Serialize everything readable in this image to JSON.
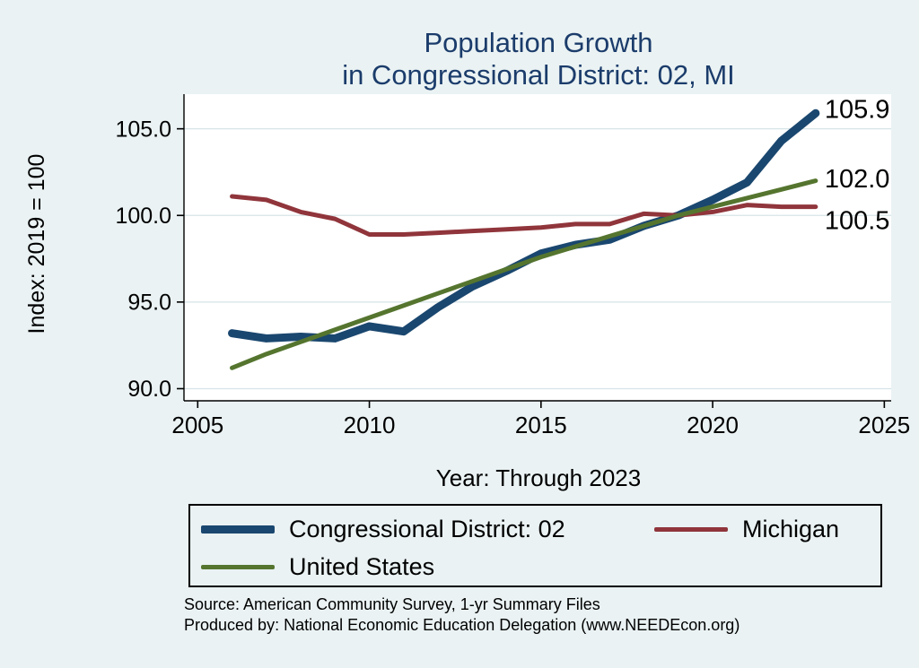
{
  "page": {
    "background": "#eaf2f3"
  },
  "chart_data": {
    "type": "line",
    "title_line1": "Population Growth",
    "title_line2": "in Congressional District: 02, MI",
    "title_color": "#1b3c6b",
    "xlabel": "Year: Through 2023",
    "ylabel": "Index: 2019 = 100",
    "plot_bg": "#ffffff",
    "grid_color": "#d6e4e7",
    "grid": true,
    "legend_position": "bottom",
    "xlim": [
      2004.6,
      2025.2
    ],
    "ylim": [
      89.3,
      107.0
    ],
    "xticks": [
      2005,
      2010,
      2015,
      2020,
      2025
    ],
    "yticks": [
      90,
      95,
      100,
      105
    ],
    "ytick_labels": [
      "90.0",
      "95.0",
      "100.0",
      "105.0"
    ],
    "x": [
      2006,
      2007,
      2008,
      2009,
      2010,
      2011,
      2012,
      2013,
      2014,
      2015,
      2016,
      2017,
      2018,
      2019,
      2020,
      2021,
      2022,
      2023
    ],
    "series": [
      {
        "name": "Congressional District: 02",
        "color": "#1a476f",
        "width": 9,
        "label_dy": -5,
        "end_label": "105.9",
        "values": [
          93.2,
          92.9,
          93.0,
          92.9,
          93.6,
          93.3,
          94.7,
          95.9,
          96.8,
          97.8,
          98.3,
          98.6,
          99.4,
          100.0,
          100.9,
          101.9,
          104.3,
          105.9
        ]
      },
      {
        "name": "Michigan",
        "color": "#90353b",
        "width": 5,
        "label_dy": 15,
        "end_label": "100.5",
        "values": [
          101.1,
          100.9,
          100.2,
          99.8,
          98.9,
          98.9,
          99.0,
          99.1,
          99.2,
          99.3,
          99.5,
          99.5,
          100.1,
          100.0,
          100.2,
          100.6,
          100.5,
          100.5
        ]
      },
      {
        "name": "United States",
        "color": "#55752f",
        "width": 5,
        "label_dy": -3,
        "end_label": "102.0",
        "values": [
          91.2,
          92.0,
          92.7,
          93.4,
          94.1,
          94.8,
          95.5,
          96.2,
          96.9,
          97.6,
          98.2,
          98.8,
          99.4,
          100.0,
          100.5,
          101.0,
          101.5,
          102.0
        ]
      }
    ]
  },
  "notes": {
    "source": "Source: American Community Survey, 1-yr Summary Files",
    "produced_by": "Produced by: National Economic Education Delegation (www.NEEDEcon.org)"
  }
}
